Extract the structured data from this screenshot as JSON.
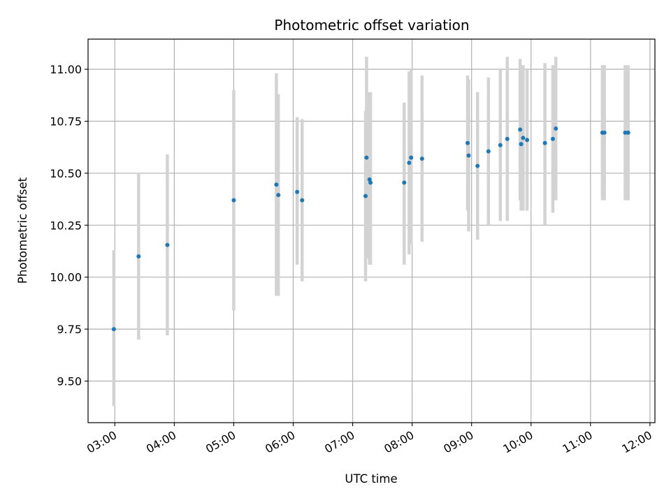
{
  "chart_data": {
    "type": "scatter",
    "title": "Photometric offset variation",
    "xlabel": "UTC time",
    "ylabel": "Photometric offset",
    "x_unit": "hours (UTC)",
    "xlim": [
      "02:33",
      "12:05"
    ],
    "ylim": [
      9.3,
      11.145
    ],
    "grid": true,
    "x_ticks": [
      "03:00",
      "04:00",
      "05:00",
      "06:00",
      "07:00",
      "08:00",
      "09:00",
      "10:00",
      "11:00",
      "12:00"
    ],
    "y_ticks": [
      "9.50",
      "9.75",
      "10.00",
      "10.25",
      "10.50",
      "10.75",
      "11.00"
    ],
    "colors": {
      "point": "#1f77b4",
      "errorbar": "#d3d3d3",
      "grid": "#b0b0b0"
    },
    "points": [
      {
        "t": "02:59",
        "y": 9.75,
        "lo": 9.38,
        "hi": 10.13
      },
      {
        "t": "03:24",
        "y": 10.1,
        "lo": 9.7,
        "hi": 10.5
      },
      {
        "t": "03:53",
        "y": 10.155,
        "lo": 9.72,
        "hi": 10.59
      },
      {
        "t": "05:00",
        "y": 10.37,
        "lo": 9.84,
        "hi": 10.9
      },
      {
        "t": "05:43",
        "y": 10.445,
        "lo": 9.91,
        "hi": 10.98
      },
      {
        "t": "05:45",
        "y": 10.395,
        "lo": 9.91,
        "hi": 10.88
      },
      {
        "t": "06:04",
        "y": 10.41,
        "lo": 10.06,
        "hi": 10.77
      },
      {
        "t": "06:09",
        "y": 10.37,
        "lo": 9.98,
        "hi": 10.76
      },
      {
        "t": "07:13",
        "y": 10.39,
        "lo": 9.98,
        "hi": 10.8
      },
      {
        "t": "07:14",
        "y": 10.575,
        "lo": 10.09,
        "hi": 11.06
      },
      {
        "t": "07:17",
        "y": 10.47,
        "lo": 10.06,
        "hi": 10.89
      },
      {
        "t": "07:18",
        "y": 10.455,
        "lo": 10.06,
        "hi": 10.89
      },
      {
        "t": "07:52",
        "y": 10.455,
        "lo": 10.06,
        "hi": 10.84
      },
      {
        "t": "07:57",
        "y": 10.55,
        "lo": 10.11,
        "hi": 10.99
      },
      {
        "t": "07:59",
        "y": 10.575,
        "lo": 10.16,
        "hi": 11.0
      },
      {
        "t": "08:10",
        "y": 10.57,
        "lo": 10.17,
        "hi": 10.97
      },
      {
        "t": "08:56",
        "y": 10.645,
        "lo": 10.32,
        "hi": 10.97
      },
      {
        "t": "08:57",
        "y": 10.585,
        "lo": 10.22,
        "hi": 10.95
      },
      {
        "t": "09:06",
        "y": 10.535,
        "lo": 10.18,
        "hi": 10.89
      },
      {
        "t": "09:17",
        "y": 10.605,
        "lo": 10.25,
        "hi": 10.96
      },
      {
        "t": "09:29",
        "y": 10.635,
        "lo": 10.27,
        "hi": 11.0
      },
      {
        "t": "09:36",
        "y": 10.665,
        "lo": 10.27,
        "hi": 11.06
      },
      {
        "t": "09:49",
        "y": 10.71,
        "lo": 10.37,
        "hi": 11.05
      },
      {
        "t": "09:50",
        "y": 10.64,
        "lo": 10.32,
        "hi": 11.02
      },
      {
        "t": "09:52",
        "y": 10.67,
        "lo": 10.32,
        "hi": 11.02
      },
      {
        "t": "09:56",
        "y": 10.66,
        "lo": 10.32,
        "hi": 11.0
      },
      {
        "t": "10:14",
        "y": 10.645,
        "lo": 10.25,
        "hi": 11.03
      },
      {
        "t": "10:22",
        "y": 10.665,
        "lo": 10.31,
        "hi": 11.02
      },
      {
        "t": "10:25",
        "y": 10.715,
        "lo": 10.37,
        "hi": 11.06
      },
      {
        "t": "11:12",
        "y": 10.695,
        "lo": 10.37,
        "hi": 11.02
      },
      {
        "t": "11:14",
        "y": 10.695,
        "lo": 10.37,
        "hi": 11.02
      },
      {
        "t": "11:35",
        "y": 10.695,
        "lo": 10.37,
        "hi": 11.02
      },
      {
        "t": "11:38",
        "y": 10.695,
        "lo": 10.37,
        "hi": 11.02
      }
    ]
  }
}
